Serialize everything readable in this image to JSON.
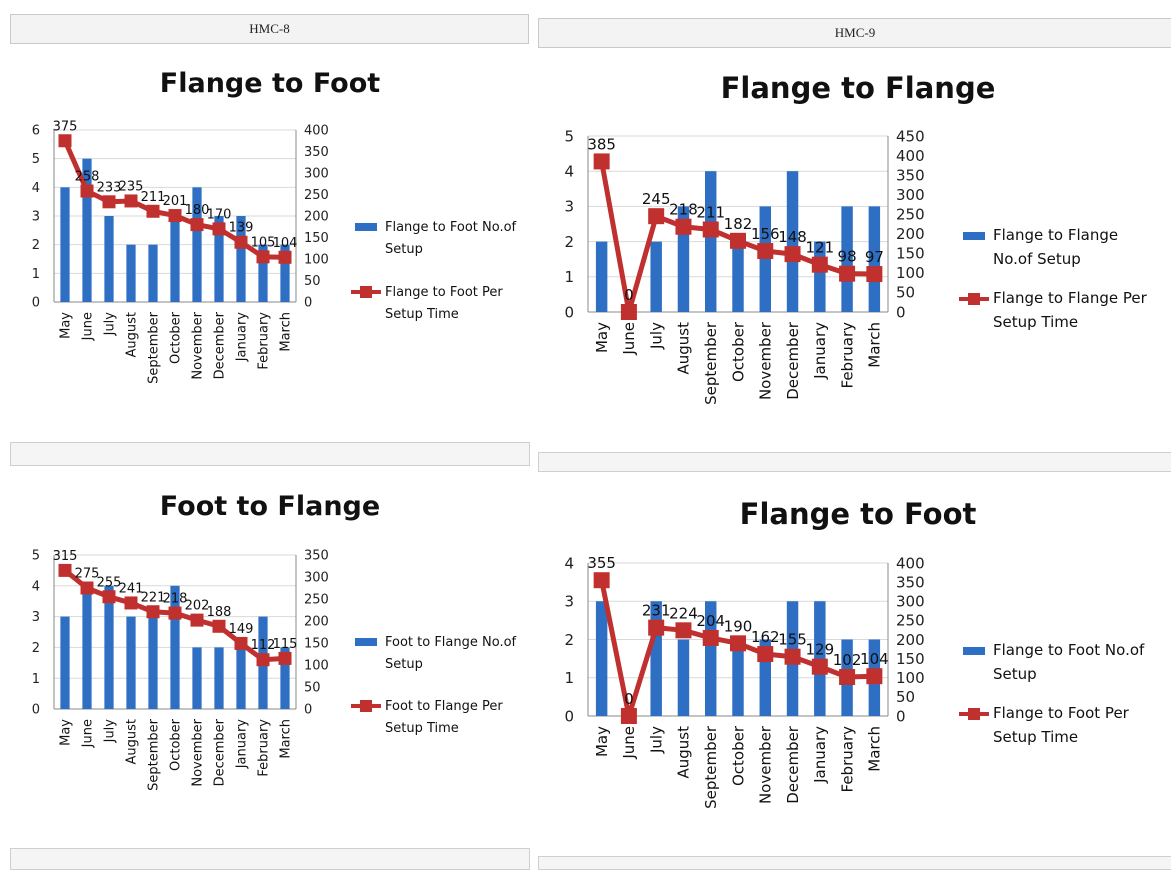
{
  "sheets": [
    {
      "title": "HMC-8"
    },
    {
      "title": "HMC-9"
    }
  ],
  "colors": {
    "bar": "#2e6fc4",
    "line": "#c0302e"
  },
  "chart_data": [
    {
      "type": "bar+line",
      "title": "Flange to Foot",
      "categories": [
        "May",
        "June",
        "July",
        "August",
        "September",
        "October",
        "November",
        "December",
        "January",
        "February",
        "March"
      ],
      "series": [
        {
          "name": "Flange to Foot No.of Setup",
          "type": "bar",
          "axis": "left",
          "values": [
            4,
            5,
            3,
            2,
            2,
            3,
            4,
            3,
            3,
            2,
            2
          ]
        },
        {
          "name": "Flange to Foot Per Setup Time",
          "type": "line",
          "axis": "right",
          "values": [
            375,
            258,
            233,
            235,
            211,
            201,
            180,
            170,
            139,
            105,
            104
          ]
        }
      ],
      "y_left": {
        "min": 0,
        "max": 6,
        "ticks": [
          "0",
          "1",
          "2",
          "3",
          "4",
          "5",
          "6"
        ]
      },
      "y_right": {
        "min": 0,
        "max": 400,
        "ticks": [
          "0",
          "50",
          "100",
          "150",
          "200",
          "250",
          "300",
          "350",
          "400"
        ]
      },
      "data_labels": [
        "375",
        "258",
        "233",
        "235",
        "211",
        "201",
        "180",
        "170",
        "139",
        "105",
        "104"
      ],
      "legend": [
        {
          "lines": [
            "Flange to Foot No.of",
            "Setup"
          ]
        },
        {
          "lines": [
            "Flange to Foot Per",
            "Setup Time"
          ]
        }
      ],
      "legend_position": "right"
    },
    {
      "type": "bar+line",
      "title": "Foot to Flange",
      "categories": [
        "May",
        "June",
        "July",
        "August",
        "September",
        "October",
        "November",
        "December",
        "January",
        "February",
        "March"
      ],
      "series": [
        {
          "name": "Foot to Flange No.of Setup",
          "type": "bar",
          "axis": "left",
          "values": [
            3,
            4,
            4,
            3,
            3,
            4,
            2,
            2,
            2,
            3,
            2
          ]
        },
        {
          "name": "Foot to Flange Per Setup Time",
          "type": "line",
          "axis": "right",
          "values": [
            315,
            275,
            255,
            241,
            221,
            218,
            202,
            188,
            149,
            112,
            115
          ]
        }
      ],
      "y_left": {
        "min": 0,
        "max": 5,
        "ticks": [
          "0",
          "1",
          "2",
          "3",
          "4",
          "5"
        ]
      },
      "y_right": {
        "min": 0,
        "max": 350,
        "ticks": [
          "0",
          "50",
          "100",
          "150",
          "200",
          "250",
          "300",
          "350"
        ]
      },
      "data_labels": [
        "315",
        "275",
        "255",
        "241",
        "221",
        "218",
        "202",
        "188",
        "149",
        "112",
        "115"
      ],
      "legend": [
        {
          "lines": [
            "Foot to Flange No.of",
            "Setup"
          ]
        },
        {
          "lines": [
            "Foot to Flange Per",
            "Setup Time"
          ]
        }
      ],
      "legend_position": "right"
    },
    {
      "type": "bar+line",
      "title": "Flange to Flange",
      "categories": [
        "May",
        "June",
        "July",
        "August",
        "September",
        "October",
        "November",
        "December",
        "January",
        "February",
        "March"
      ],
      "series": [
        {
          "name": "Flange to Flange No.of Setup",
          "type": "bar",
          "axis": "left",
          "values": [
            2,
            0,
            2,
            3,
            4,
            2,
            3,
            4,
            2,
            3,
            3
          ]
        },
        {
          "name": "Flange to Flange Per Setup Time",
          "type": "line",
          "axis": "right",
          "values": [
            385,
            0,
            245,
            218,
            211,
            182,
            156,
            148,
            121,
            98,
            97
          ]
        }
      ],
      "y_left": {
        "min": 0,
        "max": 5,
        "ticks": [
          "0",
          "1",
          "2",
          "3",
          "4",
          "5"
        ]
      },
      "y_right": {
        "min": 0,
        "max": 450,
        "ticks": [
          "0",
          "50",
          "100",
          "150",
          "200",
          "250",
          "300",
          "350",
          "400",
          "450"
        ]
      },
      "data_labels": [
        "385",
        "0",
        "245",
        "218",
        "211",
        "182",
        "156",
        "148",
        "121",
        "98",
        "97"
      ],
      "legend": [
        {
          "lines": [
            "Flange to Flange",
            "No.of Setup"
          ]
        },
        {
          "lines": [
            "Flange to Flange Per",
            "Setup Time"
          ]
        }
      ],
      "legend_position": "right"
    },
    {
      "type": "bar+line",
      "title": "Flange to Foot",
      "categories": [
        "May",
        "June",
        "July",
        "August",
        "September",
        "October",
        "November",
        "December",
        "January",
        "February",
        "March"
      ],
      "series": [
        {
          "name": "Flange to Foot No.of Setup",
          "type": "bar",
          "axis": "left",
          "values": [
            3,
            0,
            3,
            2,
            3,
            2,
            2,
            3,
            3,
            2,
            2
          ]
        },
        {
          "name": "Flange to Foot Per Setup Time",
          "type": "line",
          "axis": "right",
          "values": [
            355,
            0,
            231,
            224,
            204,
            190,
            162,
            155,
            129,
            102,
            104
          ]
        }
      ],
      "y_left": {
        "min": 0,
        "max": 4,
        "ticks": [
          "0",
          "1",
          "2",
          "3",
          "4"
        ]
      },
      "y_right": {
        "min": 0,
        "max": 400,
        "ticks": [
          "0",
          "50",
          "100",
          "150",
          "200",
          "250",
          "300",
          "350",
          "400"
        ]
      },
      "data_labels": [
        "355",
        "0",
        "231",
        "224",
        "204",
        "190",
        "162",
        "155",
        "129",
        "102",
        "104"
      ],
      "legend": [
        {
          "lines": [
            "Flange to Foot No.of",
            "Setup"
          ]
        },
        {
          "lines": [
            "Flange to Foot Per",
            "Setup Time"
          ]
        }
      ],
      "legend_position": "right"
    }
  ]
}
